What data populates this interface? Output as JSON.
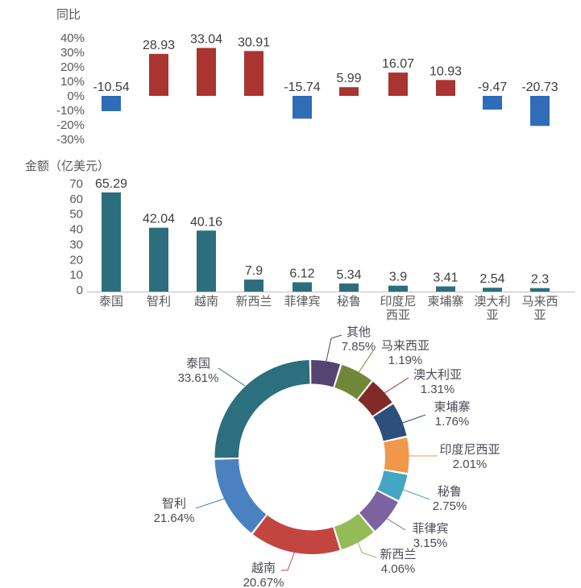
{
  "page": {
    "background": "#ffffff"
  },
  "chart_data": [
    {
      "id": "yoy",
      "type": "bar",
      "title": "同比",
      "categories": [
        "泰国",
        "智利",
        "越南",
        "新西兰",
        "菲律宾",
        "秘鲁",
        "印度尼西亚",
        "柬埔寨",
        "澳大利亚",
        "马来西亚"
      ],
      "values": [
        -10.54,
        28.93,
        33.04,
        30.91,
        -15.74,
        5.99,
        16.07,
        10.93,
        -9.47,
        -20.73
      ],
      "value_labels": [
        "-10.54",
        "28.93",
        "33.04",
        "30.91",
        "-15.74",
        "5.99",
        "16.07",
        "10.93",
        "-9.47",
        "-20.73"
      ],
      "yticks": [
        40,
        30,
        20,
        10,
        0,
        -10,
        -20,
        -30
      ],
      "ytick_labels": [
        "40%",
        "30%",
        "20%",
        "10%",
        "0%",
        "-10%",
        "-20%",
        "-30%"
      ],
      "ylim": [
        -30,
        40
      ],
      "grid": false,
      "x_axis_labels_shown": false,
      "positive_color": "#a93430",
      "negative_color": "#2f6db6",
      "axis_text_color": "#595959",
      "value_label_color": "#3d3d3d"
    },
    {
      "id": "amount",
      "type": "bar",
      "title": "金额（亿美元）",
      "categories": [
        "泰国",
        "智利",
        "越南",
        "新西兰",
        "菲律宾",
        "秘鲁",
        "印度尼西亚",
        "柬埔寨",
        "澳大利亚",
        "马来西亚"
      ],
      "category_lines": [
        [
          "泰国"
        ],
        [
          "智利"
        ],
        [
          "越南"
        ],
        [
          "新西兰"
        ],
        [
          "菲律宾"
        ],
        [
          "秘鲁"
        ],
        [
          "印度尼",
          "西亚"
        ],
        [
          "柬埔寨"
        ],
        [
          "澳大利",
          "亚"
        ],
        [
          "马来西",
          "亚"
        ]
      ],
      "values": [
        65.29,
        42.04,
        40.16,
        7.9,
        6.12,
        5.34,
        3.9,
        3.41,
        2.54,
        2.3
      ],
      "value_labels": [
        "65.29",
        "42.04",
        "40.16",
        "7.9",
        "6.12",
        "5.34",
        "3.9",
        "3.41",
        "2.54",
        "2.3"
      ],
      "yticks": [
        70,
        60,
        50,
        40,
        30,
        20,
        10,
        0
      ],
      "ytick_labels": [
        "70",
        "60",
        "50",
        "40",
        "30",
        "20",
        "10",
        "0"
      ],
      "ylim": [
        0,
        70
      ],
      "grid": false,
      "bar_color": "#2d6e7e",
      "axis_line_color": "#bfbfbf",
      "axis_text_color": "#595959",
      "value_label_color": "#3d3d3d"
    },
    {
      "id": "share",
      "type": "pie",
      "donut": true,
      "legend_position": "none",
      "label_color": "#4c4a54",
      "series": [
        {
          "name": "其他",
          "value": 7.85,
          "pct_label": "7.85%",
          "color": "#554470"
        },
        {
          "name": "马来西亚",
          "value": 1.19,
          "pct_label": "1.19%",
          "color": "#708639"
        },
        {
          "name": "澳大利亚",
          "value": 1.31,
          "pct_label": "1.31%",
          "color": "#822a26"
        },
        {
          "name": "柬埔寨",
          "value": 1.76,
          "pct_label": "1.76%",
          "color": "#2d4f7c"
        },
        {
          "name": "印度尼西亚",
          "value": 2.01,
          "pct_label": "2.01%",
          "color": "#ef9849"
        },
        {
          "name": "秘鲁",
          "value": 2.75,
          "pct_label": "2.75%",
          "color": "#45a5c5"
        },
        {
          "name": "菲律宾",
          "value": 3.15,
          "pct_label": "3.15%",
          "color": "#7d62a0"
        },
        {
          "name": "新西兰",
          "value": 4.06,
          "pct_label": "4.06%",
          "color": "#95bb57"
        },
        {
          "name": "越南",
          "value": 20.67,
          "pct_label": "20.67%",
          "color": "#c24540"
        },
        {
          "name": "智利",
          "value": 21.64,
          "pct_label": "21.64%",
          "color": "#4a81c0"
        },
        {
          "name": "泰国",
          "value": 33.61,
          "pct_label": "33.61%",
          "color": "#2c6f7e"
        }
      ]
    }
  ]
}
